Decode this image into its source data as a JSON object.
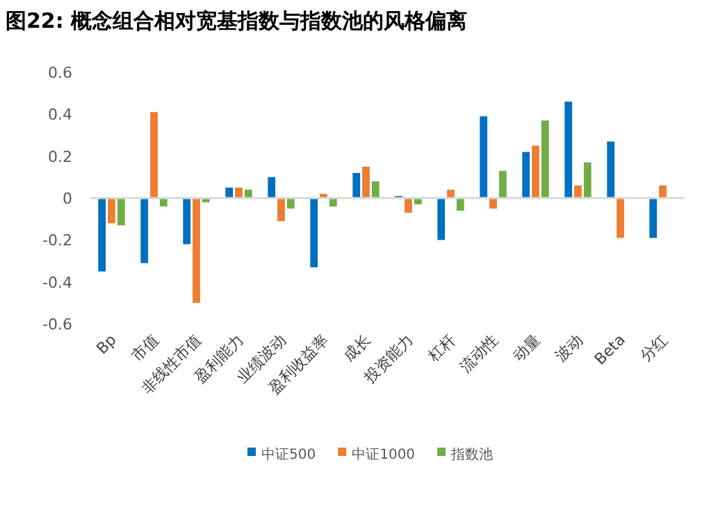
{
  "chart_data": {
    "type": "bar",
    "title": "图22: 概念组合相对宽基指数与指数池的风格偏离",
    "categories": [
      "Bp",
      "市值",
      "非线性市值",
      "盈利能力",
      "业绩波动",
      "盈利收益率",
      "成长",
      "投资能力",
      "杠杆",
      "流动性",
      "动量",
      "波动",
      "Beta",
      "分红"
    ],
    "series": [
      {
        "name": "中证500",
        "color": "#0070c0",
        "values": [
          -0.35,
          -0.31,
          -0.22,
          0.05,
          0.1,
          -0.33,
          0.12,
          0.01,
          -0.2,
          0.39,
          0.22,
          0.46,
          0.27,
          -0.19
        ]
      },
      {
        "name": "中证1000",
        "color": "#ed7d31",
        "values": [
          -0.12,
          0.41,
          -0.5,
          0.05,
          -0.11,
          0.02,
          0.15,
          -0.07,
          0.04,
          -0.05,
          0.25,
          0.06,
          -0.19,
          0.06
        ]
      },
      {
        "name": "指数池",
        "color": "#70ad47",
        "values": [
          -0.13,
          -0.04,
          -0.02,
          0.04,
          -0.05,
          -0.04,
          0.08,
          -0.03,
          -0.06,
          0.13,
          0.37,
          0.17,
          null,
          null
        ]
      }
    ],
    "ylim": [
      -0.6,
      0.6
    ],
    "yticks": [
      -0.6,
      -0.4,
      -0.2,
      0,
      0.2,
      0.4,
      0.6
    ],
    "legend": "bottom"
  }
}
